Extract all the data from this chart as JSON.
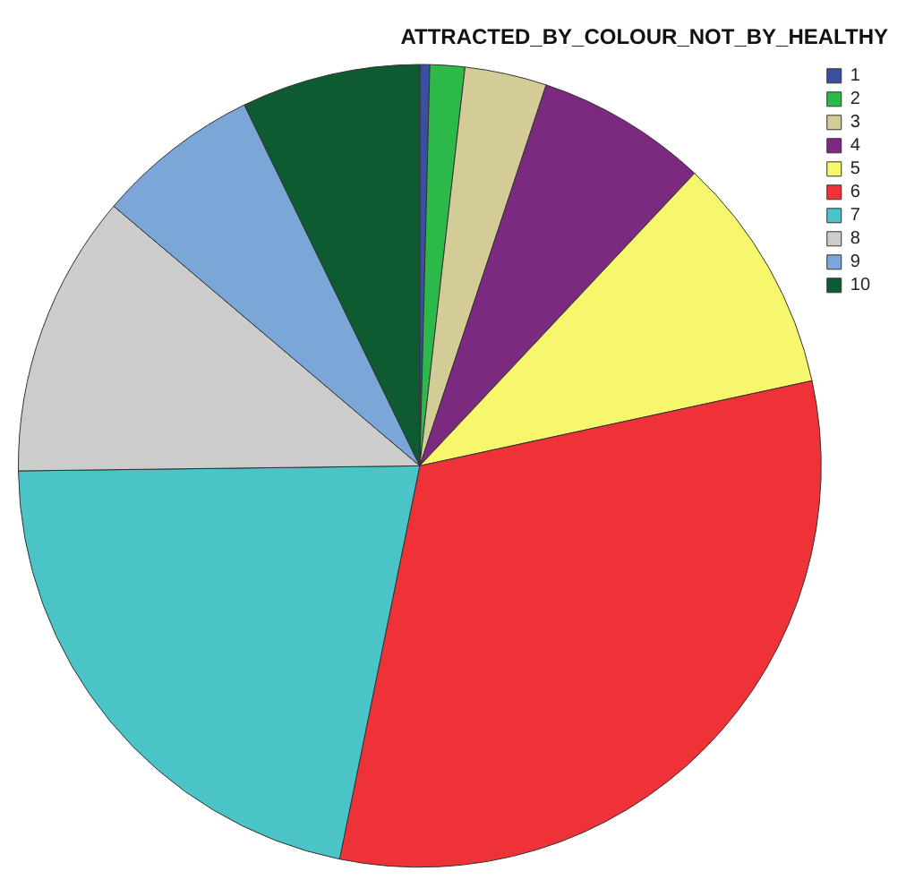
{
  "chart_data": {
    "type": "pie",
    "title": "ATTRACTED_BY_COLOUR_NOT_BY_HEALTHY",
    "legend": "top right",
    "categories": [
      "1",
      "2",
      "3",
      "4",
      "5",
      "6",
      "7",
      "8",
      "9",
      "10"
    ],
    "values": [
      0.4,
      1.4,
      3.3,
      6.9,
      9.6,
      31.6,
      21.6,
      11.4,
      6.6,
      7.2
    ],
    "colors": [
      "#3a4fa0",
      "#2db84a",
      "#d4cc96",
      "#7b2a80",
      "#f7f76e",
      "#ef3238",
      "#4bc4c8",
      "#cccccc",
      "#7ba7d8",
      "#0e5a31"
    ]
  }
}
